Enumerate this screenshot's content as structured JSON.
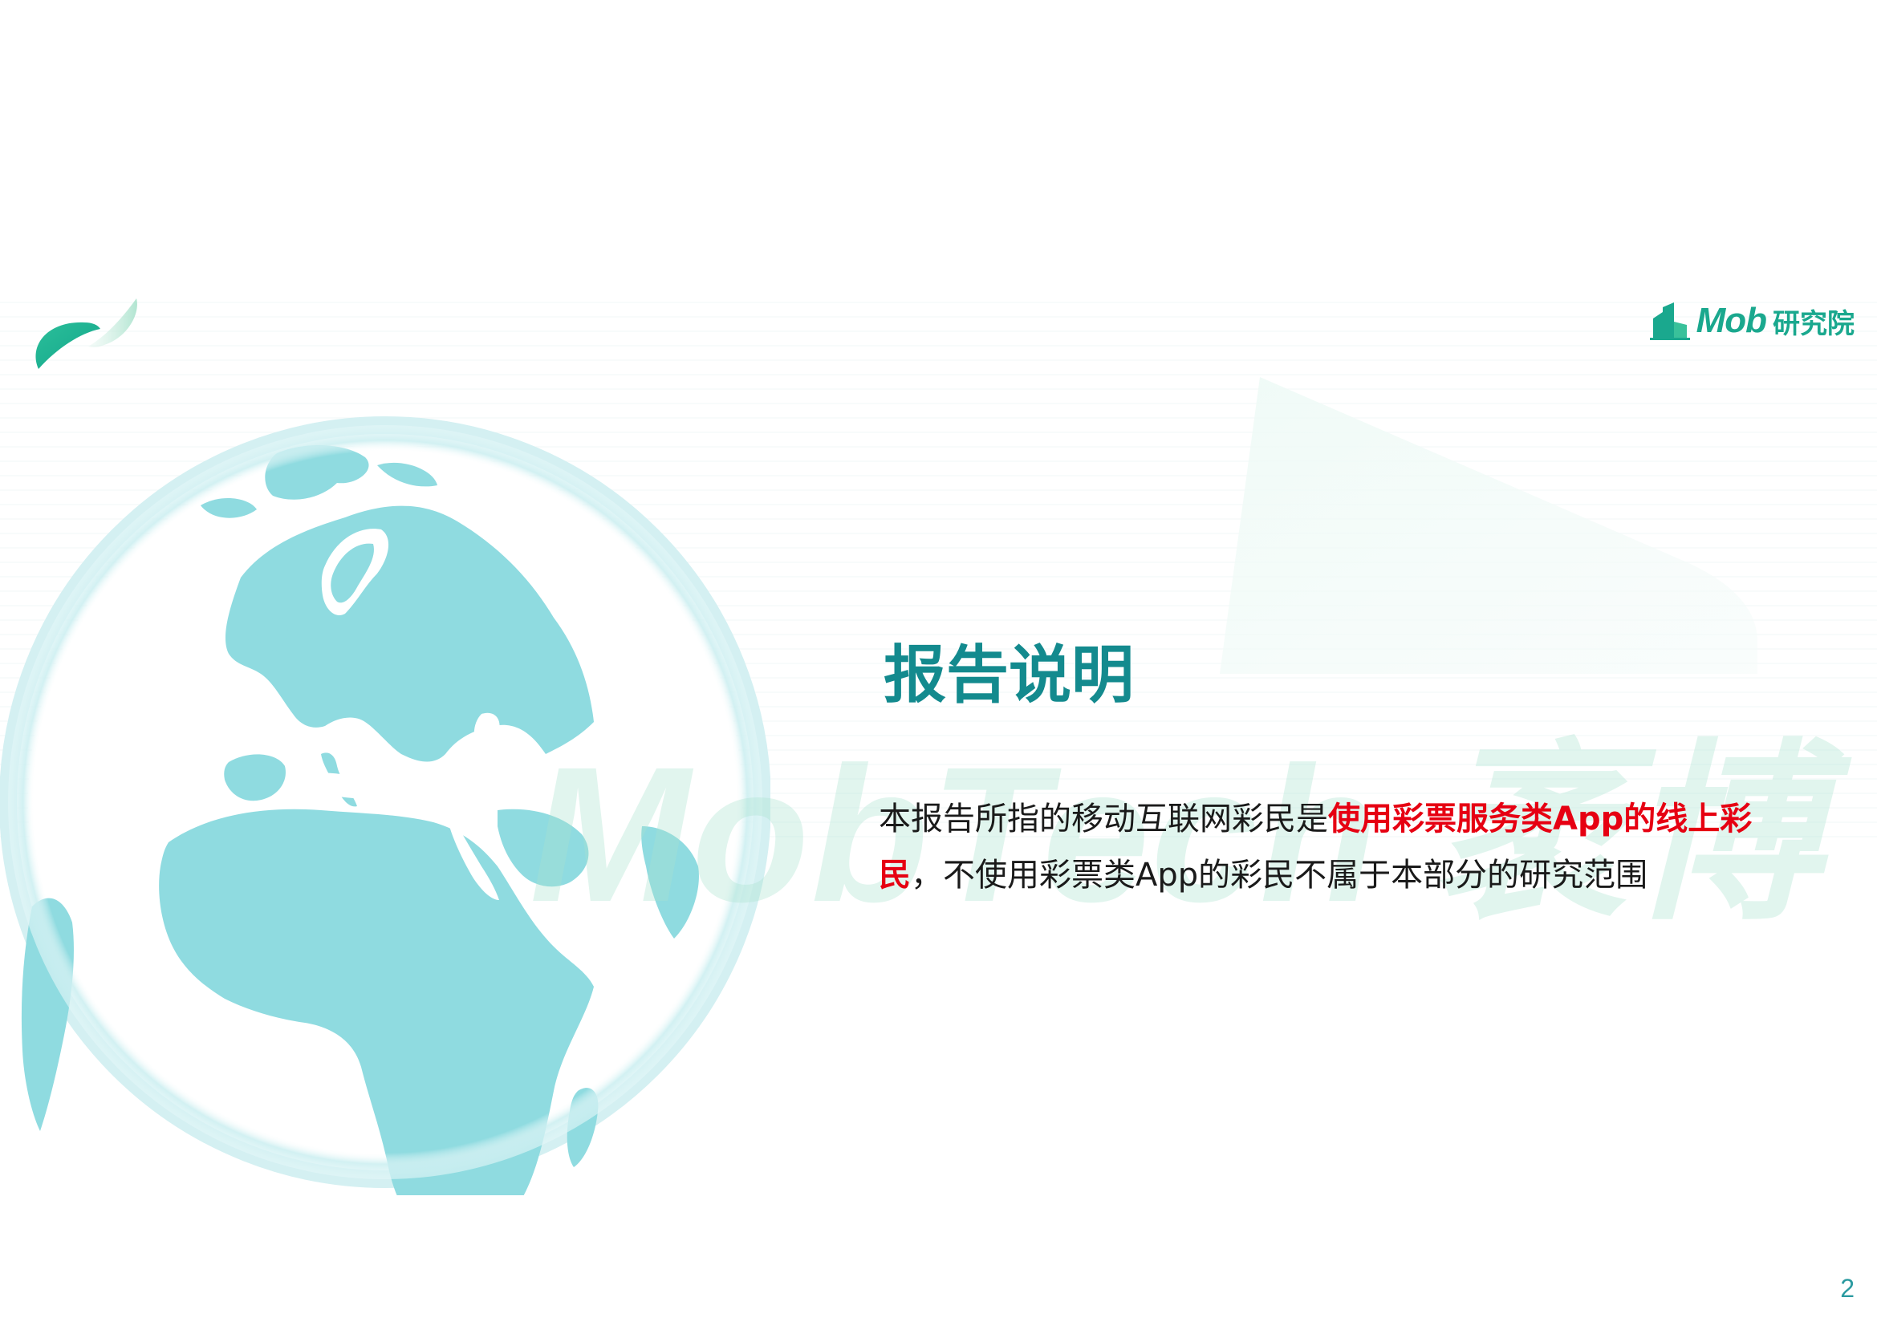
{
  "header": {
    "logo_brand": "Mob",
    "logo_suffix": "研究院"
  },
  "watermark": "MobTech 袤博",
  "section": {
    "title": "报告说明",
    "desc_part1": "本报告所指的移动互联网彩民是",
    "desc_highlight": "使用彩票服务类App的线上彩民",
    "desc_part2": "，不使用彩票类App的彩民不属于本部分的研究范围"
  },
  "footer": {
    "page_number": "2"
  },
  "colors": {
    "accent": "#138a8e",
    "highlight": "#e60012",
    "globe_land": "#8fdbe0",
    "globe_ring": "#c8ecef",
    "logo": "#1aa88e"
  }
}
